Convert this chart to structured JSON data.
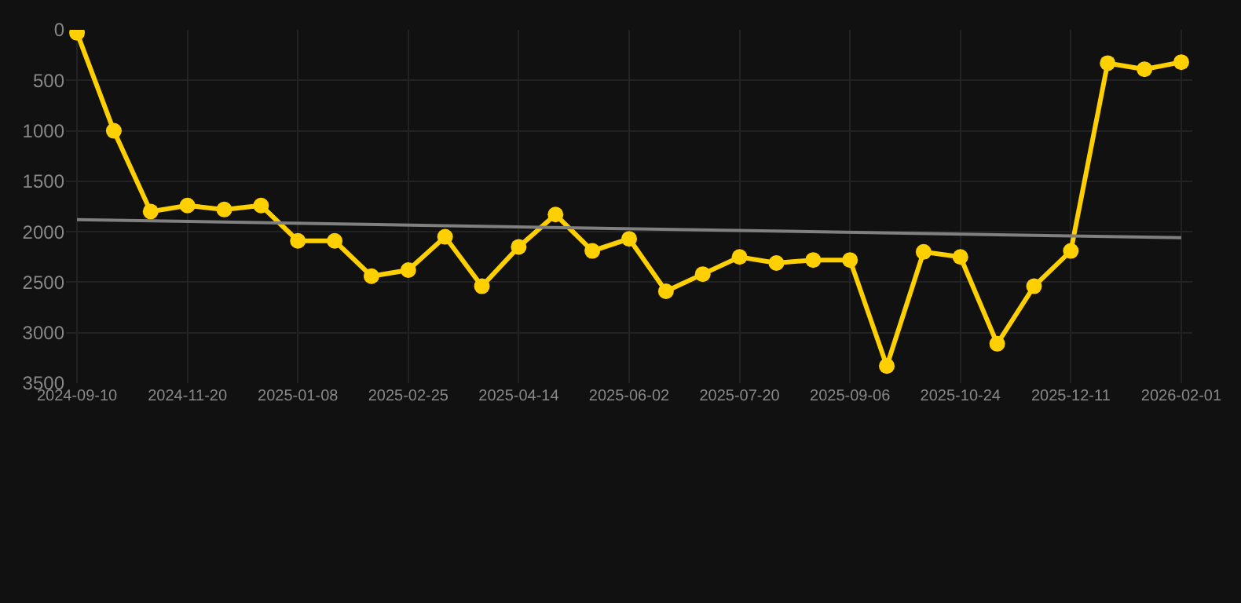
{
  "chart_data": {
    "type": "line",
    "categories": [
      "2024-09-10",
      null,
      null,
      "2024-11-20",
      null,
      null,
      "2025-01-08",
      null,
      null,
      "2025-02-25",
      null,
      null,
      "2025-04-14",
      null,
      null,
      "2025-06-02",
      null,
      null,
      "2025-07-20",
      null,
      null,
      "2025-09-06",
      null,
      null,
      "2025-10-24",
      null,
      null,
      "2025-12-11",
      null,
      null,
      "2026-02-01"
    ],
    "series": [
      {
        "color": "#ffd000",
        "marker": "circle",
        "values": [
          30,
          1000,
          1800,
          1740,
          1780,
          1740,
          2090,
          2090,
          2440,
          2380,
          2050,
          2540,
          2150,
          1830,
          2190,
          2070,
          2590,
          2420,
          2250,
          2310,
          2280,
          2280,
          3330,
          2200,
          2250,
          3110,
          2540,
          2190,
          330,
          390,
          320
        ]
      },
      {
        "color": "#808080",
        "marker": "none",
        "values": [
          1880,
          null,
          null,
          null,
          null,
          null,
          null,
          null,
          null,
          null,
          null,
          null,
          null,
          null,
          null,
          null,
          null,
          null,
          null,
          null,
          null,
          null,
          null,
          null,
          null,
          null,
          null,
          null,
          null,
          null,
          2060
        ]
      }
    ],
    "ylim": [
      3500,
      0
    ],
    "yticks": [
      0,
      500,
      1000,
      1500,
      2000,
      2500,
      3000,
      3500
    ],
    "grid": true
  }
}
